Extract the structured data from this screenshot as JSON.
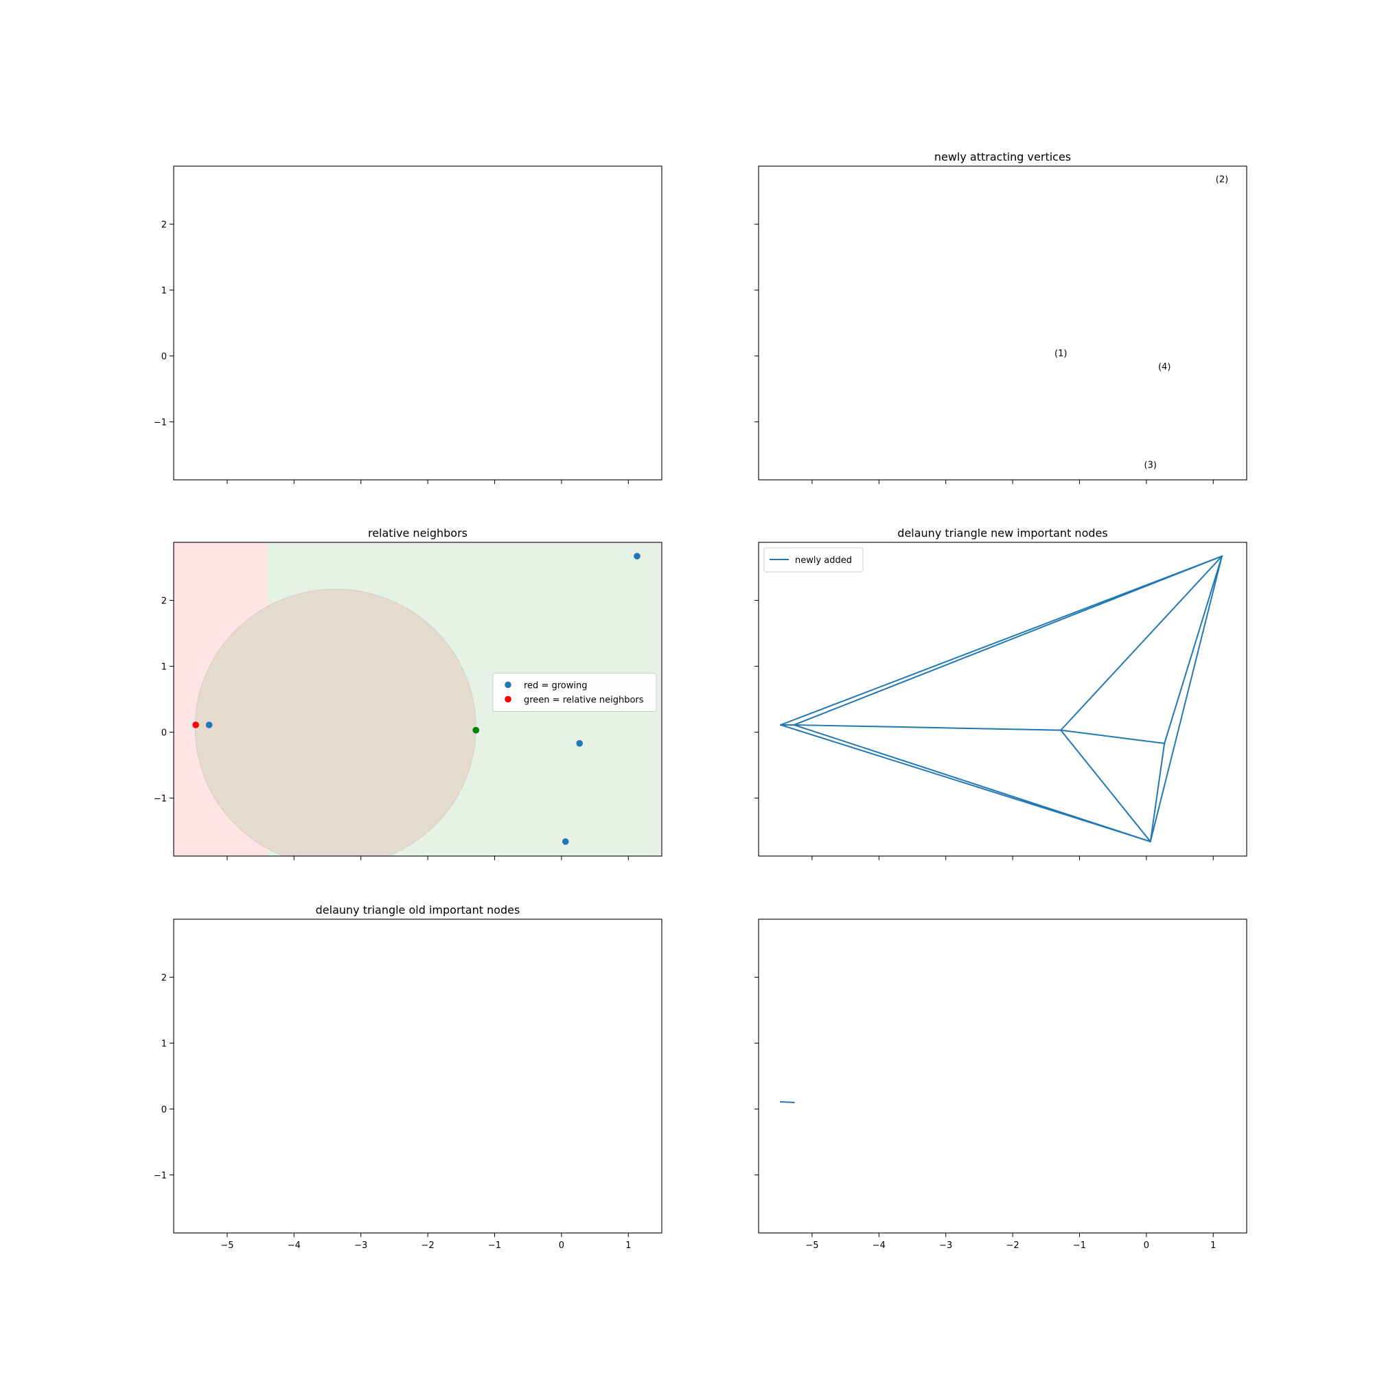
{
  "figure": {
    "shared_xlim": [
      -5.8,
      1.5
    ],
    "shared_ylim": [
      -1.88,
      2.88
    ],
    "x_ticks": [
      -5,
      -4,
      -3,
      -2,
      -1,
      0,
      1
    ],
    "y_ticks": [
      -1,
      0,
      1,
      2
    ],
    "colors": {
      "series": "#1f77b4",
      "red": "#ff0000",
      "green": "#008000",
      "red_fill": "#ffe4e6",
      "green_fill": "#e6f2e6",
      "overlap_fill": "#e4dace"
    }
  },
  "chart_data": [
    {
      "id": "empty-top-left",
      "type": "scatter",
      "title": "",
      "grid": false
    },
    {
      "id": "newly-attracting-vertices",
      "type": "scatter",
      "title": "newly attracting vertices",
      "grid": false,
      "annotations": [
        {
          "text": "(1)",
          "x": -1.28,
          "y": 0.03
        },
        {
          "text": "(2)",
          "x": 1.13,
          "y": 2.67
        },
        {
          "text": "(3)",
          "x": 0.06,
          "y": -1.66
        },
        {
          "text": "(4)",
          "x": 0.27,
          "y": -0.17
        }
      ]
    },
    {
      "id": "relative-neighbors",
      "type": "scatter",
      "title": "relative neighbors",
      "grid": false,
      "legend_position": "center-right",
      "legend": [
        {
          "label": "red = growing",
          "color": "#1f77b4"
        },
        {
          "label": "green = relative neighbors",
          "color": "#ff0000"
        }
      ],
      "background_regions": [
        {
          "side": "left",
          "color": "#ffe4e6",
          "boundary_x": -4.4
        },
        {
          "side": "right",
          "color": "#e6f2e6"
        }
      ],
      "circle": {
        "center": [
          -3.38,
          0.07
        ],
        "radius": 2.1,
        "color": "#e4dace"
      },
      "points": [
        {
          "x": -5.27,
          "y": 0.11,
          "color": "#1f77b4"
        },
        {
          "x": -1.28,
          "y": 0.03,
          "color": "#1f77b4"
        },
        {
          "x": 1.13,
          "y": 2.67,
          "color": "#1f77b4"
        },
        {
          "x": 0.27,
          "y": -0.17,
          "color": "#1f77b4"
        },
        {
          "x": 0.06,
          "y": -1.66,
          "color": "#1f77b4"
        },
        {
          "x": -5.47,
          "y": 0.11,
          "color": "#ff0000"
        },
        {
          "x": -1.28,
          "y": 0.03,
          "color": "#008000"
        }
      ]
    },
    {
      "id": "delauny-new",
      "type": "line",
      "title": "delauny triangle new important nodes",
      "grid": false,
      "legend_position": "top-left",
      "legend": [
        {
          "label": "newly added",
          "color": "#1f77b4"
        }
      ],
      "segments": [
        [
          [
            -5.47,
            0.11
          ],
          [
            1.13,
            2.67
          ]
        ],
        [
          [
            -5.27,
            0.11
          ],
          [
            1.13,
            2.67
          ]
        ],
        [
          [
            -5.47,
            0.11
          ],
          [
            -5.27,
            0.11
          ]
        ],
        [
          [
            -5.47,
            0.11
          ],
          [
            0.06,
            -1.66
          ]
        ],
        [
          [
            -5.27,
            0.11
          ],
          [
            0.06,
            -1.66
          ]
        ],
        [
          [
            -5.27,
            0.11
          ],
          [
            -1.28,
            0.03
          ]
        ],
        [
          [
            -1.28,
            0.03
          ],
          [
            1.13,
            2.67
          ]
        ],
        [
          [
            -1.28,
            0.03
          ],
          [
            0.27,
            -0.17
          ]
        ],
        [
          [
            -1.28,
            0.03
          ],
          [
            0.06,
            -1.66
          ]
        ],
        [
          [
            0.27,
            -0.17
          ],
          [
            1.13,
            2.67
          ]
        ],
        [
          [
            0.27,
            -0.17
          ],
          [
            0.06,
            -1.66
          ]
        ],
        [
          [
            0.06,
            -1.66
          ],
          [
            1.13,
            2.67
          ]
        ]
      ]
    },
    {
      "id": "delauny-old",
      "type": "line",
      "title": "delauny triangle old important nodes",
      "grid": false
    },
    {
      "id": "bottom-right",
      "type": "line",
      "title": "",
      "grid": false,
      "segments": [
        [
          [
            -5.47,
            0.11
          ],
          [
            -5.27,
            0.1
          ]
        ]
      ]
    }
  ]
}
